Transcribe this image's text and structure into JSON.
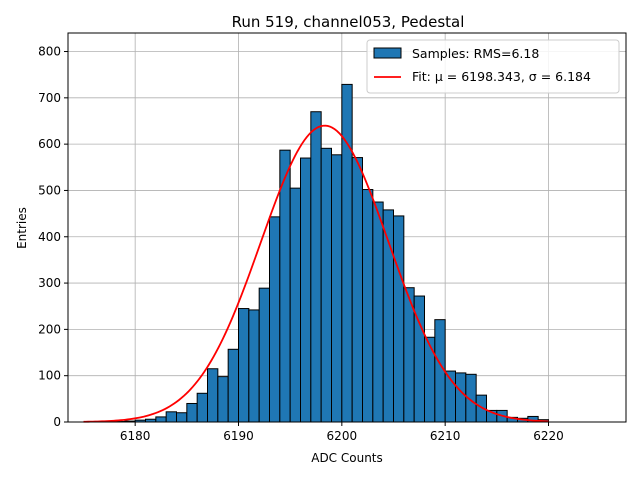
{
  "chart_data": {
    "type": "bar",
    "title": "Run 519, channel053, Pedestal",
    "xlabel": "ADC Counts",
    "ylabel": "Entries",
    "xlim": [
      6173.5,
      6227.5
    ],
    "ylim": [
      0,
      840
    ],
    "xticks": [
      6180,
      6190,
      6200,
      6210,
      6220
    ],
    "yticks": [
      0,
      100,
      200,
      300,
      400,
      500,
      600,
      700,
      800
    ],
    "grid": true,
    "legend_position": "top-right",
    "bar_color": "#1f77b4",
    "fit_color": "#ff0000",
    "histogram": {
      "name": "Samples: RMS=6.18",
      "bin_width": 1,
      "bins_start": [
        6175,
        6176,
        6177,
        6178,
        6179,
        6180,
        6181,
        6182,
        6183,
        6184,
        6185,
        6186,
        6187,
        6188,
        6189,
        6190,
        6191,
        6192,
        6193,
        6194,
        6195,
        6196,
        6197,
        6198,
        6199,
        6200,
        6201,
        6202,
        6203,
        6204,
        6205,
        6206,
        6207,
        6208,
        6209,
        6210,
        6211,
        6212,
        6213,
        6214,
        6215,
        6216,
        6217,
        6218,
        6219
      ],
      "counts": [
        0,
        0,
        0,
        1,
        2,
        4,
        6,
        11,
        22,
        20,
        40,
        62,
        115,
        98,
        157,
        245,
        242,
        289,
        443,
        587,
        505,
        570,
        670,
        591,
        577,
        729,
        571,
        502,
        475,
        458,
        445,
        290,
        272,
        183,
        221,
        110,
        106,
        103,
        58,
        25,
        25,
        10,
        8,
        12,
        5
      ]
    },
    "fit": {
      "name": "Fit: μ = 6198.343, σ = 6.184",
      "mu": 6198.343,
      "sigma": 6.184,
      "peak": 640,
      "x_range": [
        6175,
        6220
      ]
    }
  }
}
